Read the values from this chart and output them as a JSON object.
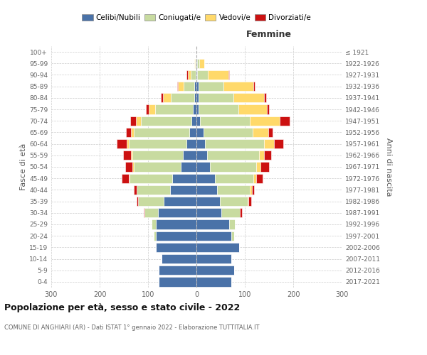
{
  "age_groups": [
    "0-4",
    "5-9",
    "10-14",
    "15-19",
    "20-24",
    "25-29",
    "30-34",
    "35-39",
    "40-44",
    "45-49",
    "50-54",
    "55-59",
    "60-64",
    "65-69",
    "70-74",
    "75-79",
    "80-84",
    "85-89",
    "90-94",
    "95-99",
    "100+"
  ],
  "birth_years": [
    "2017-2021",
    "2012-2016",
    "2007-2011",
    "2002-2006",
    "1997-2001",
    "1992-1996",
    "1987-1991",
    "1982-1986",
    "1977-1981",
    "1972-1976",
    "1967-1971",
    "1962-1966",
    "1957-1961",
    "1952-1956",
    "1947-1951",
    "1942-1946",
    "1937-1941",
    "1932-1936",
    "1927-1931",
    "1922-1926",
    "≤ 1921"
  ],
  "male_celibi": [
    78,
    78,
    72,
    84,
    84,
    84,
    80,
    68,
    55,
    50,
    32,
    28,
    20,
    15,
    10,
    8,
    5,
    4,
    2,
    1,
    0
  ],
  "male_coniugati": [
    0,
    0,
    0,
    0,
    4,
    8,
    28,
    52,
    68,
    88,
    98,
    105,
    120,
    115,
    105,
    78,
    48,
    22,
    10,
    2,
    0
  ],
  "male_vedovi": [
    0,
    0,
    0,
    0,
    0,
    0,
    0,
    0,
    1,
    2,
    3,
    3,
    4,
    5,
    10,
    12,
    16,
    12,
    6,
    2,
    0
  ],
  "male_divorziati": [
    0,
    0,
    0,
    0,
    0,
    0,
    1,
    3,
    5,
    14,
    14,
    15,
    20,
    10,
    12,
    6,
    5,
    2,
    2,
    0,
    0
  ],
  "female_nubili": [
    72,
    78,
    72,
    88,
    72,
    68,
    52,
    48,
    43,
    38,
    28,
    22,
    18,
    14,
    8,
    5,
    5,
    4,
    2,
    1,
    0
  ],
  "female_coniugate": [
    0,
    0,
    0,
    0,
    6,
    12,
    38,
    58,
    68,
    80,
    96,
    108,
    122,
    102,
    102,
    82,
    72,
    52,
    22,
    5,
    0
  ],
  "female_vedove": [
    0,
    0,
    0,
    0,
    0,
    0,
    0,
    2,
    3,
    5,
    8,
    10,
    20,
    32,
    62,
    58,
    62,
    62,
    42,
    10,
    0
  ],
  "female_divorziate": [
    0,
    0,
    0,
    0,
    0,
    0,
    4,
    5,
    5,
    14,
    18,
    15,
    20,
    10,
    20,
    5,
    5,
    2,
    2,
    0,
    0
  ],
  "colors": {
    "celibi": "#4a72a8",
    "coniugati": "#c8dba0",
    "vedovi": "#ffd96a",
    "divorziati": "#cc1111"
  },
  "xlim": 300,
  "title": "Popolazione per età, sesso e stato civile - 2022",
  "subtitle": "COMUNE DI ANGHIARI (AR) - Dati ISTAT 1° gennaio 2022 - Elaborazione TUTTITALIA.IT",
  "ylabel_left": "Fasce di età",
  "ylabel_right": "Anni di nascita",
  "label_femmine": "Femmine"
}
